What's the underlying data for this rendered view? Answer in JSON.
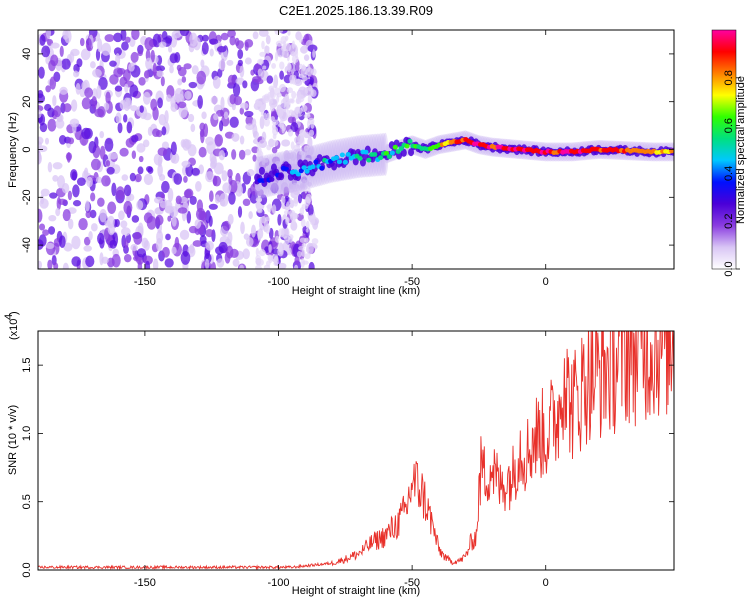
{
  "title": "C2E1.2025.186.13.39.R09",
  "chart_data": [
    {
      "type": "heatmap",
      "panel": "spectrogram",
      "xlabel": "Height of straight line (km)",
      "ylabel": "Frequency (Hz)",
      "xlim": [
        -190,
        48
      ],
      "ylim": [
        -50,
        50
      ],
      "xticks": [
        -150,
        -100,
        -50,
        0
      ],
      "yticks": [
        -40,
        -20,
        0,
        20,
        40
      ],
      "colorbar": {
        "label": "Normalized spectral amplitude",
        "range": [
          0.0,
          1.0
        ],
        "ticks": [
          0.0,
          0.2,
          0.4,
          0.6,
          0.8
        ],
        "tick_labels": [
          "0.0",
          "0.2",
          "0.4",
          "0.6",
          "0.8"
        ],
        "colormap": [
          "#ffffff",
          "#d9c6f5",
          "#8a3de0",
          "#4a00d8",
          "#0010ff",
          "#00c8ff",
          "#00e080",
          "#30ff00",
          "#ffff00",
          "#ff8000",
          "#ff0000",
          "#ff00a0"
        ]
      },
      "ridge": {
        "x": [
          -108,
          -100,
          -90,
          -80,
          -70,
          -60,
          -50,
          -45,
          -40,
          -35,
          -30,
          -25,
          -20,
          -10,
          0,
          10,
          20,
          30,
          40,
          48
        ],
        "y": [
          -12,
          -10,
          -8,
          -5,
          -3,
          -2,
          2,
          0,
          2,
          3,
          4,
          2,
          1,
          0,
          -1,
          -1,
          0,
          -0.5,
          -1,
          -1
        ],
        "amplitude": [
          0.3,
          0.35,
          0.4,
          0.45,
          0.5,
          0.55,
          0.6,
          0.55,
          0.7,
          0.85,
          0.9,
          0.95,
          0.9,
          0.9,
          0.9,
          0.95,
          0.9,
          0.85,
          0.8,
          0.7
        ]
      },
      "noise_region_x": [
        -190,
        -90
      ]
    },
    {
      "type": "line",
      "panel": "snr",
      "xlabel": "Height of straight line (km)",
      "ylabel": "SNR (10 * v/v)",
      "scale_label": "(x10",
      "scale_exponent": "4",
      "xlim": [
        -190,
        48
      ],
      "ylim": [
        0,
        1.75
      ],
      "xticks": [
        -150,
        -100,
        -50,
        0
      ],
      "yticks": [
        0.0,
        0.5,
        1.0,
        1.5
      ],
      "ytick_labels": [
        "0.0",
        "0.5",
        "1.0",
        "1.5"
      ],
      "series": [
        {
          "color": "#e8302a",
          "x": [
            -190,
            -170,
            -150,
            -130,
            -110,
            -100,
            -95,
            -90,
            -85,
            -80,
            -75,
            -70,
            -65,
            -60,
            -55,
            -52,
            -50,
            -47,
            -45,
            -42,
            -40,
            -37,
            -35,
            -32,
            -30,
            -28,
            -26,
            -25,
            -24,
            -23,
            -20,
            -17,
            -15,
            -12,
            -10,
            -7,
            -5,
            -2,
            0,
            3,
            5,
            7,
            8,
            10,
            13,
            15,
            20,
            25,
            30,
            35,
            40,
            45,
            48
          ],
          "y": [
            0.02,
            0.02,
            0.02,
            0.02,
            0.02,
            0.02,
            0.02,
            0.03,
            0.04,
            0.05,
            0.08,
            0.12,
            0.2,
            0.25,
            0.35,
            0.45,
            0.65,
            0.6,
            0.5,
            0.3,
            0.15,
            0.08,
            0.06,
            0.07,
            0.1,
            0.2,
            0.25,
            0.55,
            0.8,
            0.7,
            0.75,
            0.6,
            0.65,
            0.7,
            0.9,
            0.85,
            0.95,
            1.0,
            0.98,
            1.1,
            1.15,
            1.55,
            1.3,
            1.2,
            1.3,
            1.4,
            1.45,
            1.5,
            1.6,
            1.62,
            1.65,
            1.68,
            1.7
          ]
        }
      ]
    }
  ]
}
